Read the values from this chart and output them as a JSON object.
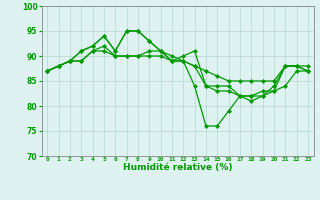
{
  "x": [
    0,
    1,
    2,
    3,
    4,
    5,
    6,
    7,
    8,
    9,
    10,
    11,
    12,
    13,
    14,
    15,
    16,
    17,
    18,
    19,
    20,
    21,
    22,
    23
  ],
  "line1": [
    87,
    88,
    89,
    89,
    91,
    92,
    90,
    90,
    90,
    90,
    90,
    89,
    89,
    88,
    87,
    86,
    85,
    85,
    85,
    85,
    85,
    88,
    88,
    87
  ],
  "line2": [
    87,
    88,
    89,
    89,
    91,
    91,
    90,
    90,
    90,
    91,
    91,
    90,
    89,
    88,
    84,
    83,
    83,
    82,
    82,
    83,
    83,
    88,
    88,
    87
  ],
  "line3": [
    87,
    88,
    89,
    91,
    92,
    94,
    91,
    95,
    95,
    93,
    91,
    89,
    90,
    91,
    84,
    84,
    84,
    82,
    82,
    82,
    84,
    88,
    88,
    88
  ],
  "line4": [
    87,
    88,
    89,
    91,
    92,
    94,
    91,
    95,
    95,
    93,
    91,
    89,
    89,
    84,
    76,
    76,
    79,
    82,
    81,
    82,
    83,
    84,
    87,
    87
  ],
  "xlim": [
    -0.5,
    23.5
  ],
  "ylim": [
    70,
    100
  ],
  "yticks": [
    70,
    75,
    80,
    85,
    90,
    95,
    100
  ],
  "xtick_labels": [
    "0",
    "1",
    "2",
    "3",
    "4",
    "5",
    "6",
    "7",
    "8",
    "9",
    "10",
    "11",
    "12",
    "13",
    "14",
    "15",
    "16",
    "17",
    "18",
    "19",
    "20",
    "21",
    "22",
    "23"
  ],
  "xlabel": "Humidité relative (%)",
  "line_color": "#009900",
  "bg_color": "#dff2f2",
  "grid_color": "#b0d8d0",
  "marker": "D",
  "marker_size": 2.0,
  "linewidth": 0.9
}
